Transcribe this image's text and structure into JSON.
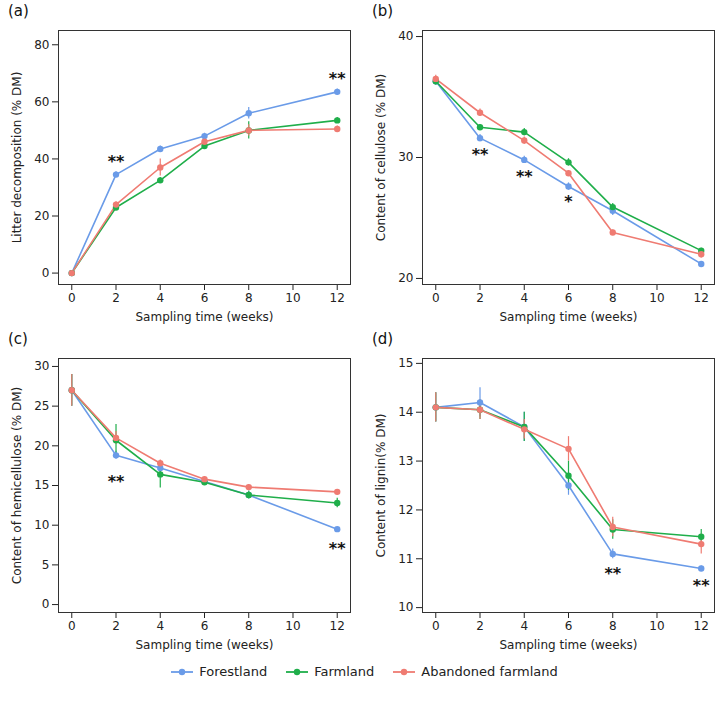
{
  "chart_data": [
    {
      "type": "line",
      "title": "(a)",
      "x_label": "Sampling time (weeks)",
      "y_label": "Litter decomposition (% DM)",
      "x": [
        0,
        2,
        4,
        6,
        8,
        12
      ],
      "xlim": [
        -0.6,
        12.6
      ],
      "xticks": [
        0,
        2,
        4,
        6,
        8,
        10,
        12
      ],
      "ylim": [
        -4,
        85
      ],
      "yticks": [
        0,
        20,
        40,
        60,
        80
      ],
      "grid": false,
      "legend": "bottom",
      "marker": "circle",
      "series": [
        {
          "name": "Forestland",
          "color": "#6a9be8",
          "values": [
            0,
            34.5,
            43.5,
            48,
            56,
            63.5
          ],
          "errors": [
            0.5,
            1,
            1,
            1,
            2,
            1
          ]
        },
        {
          "name": "Farmland",
          "color": "#1fae4a",
          "values": [
            0,
            23,
            32.5,
            44.5,
            50,
            53.5
          ],
          "errors": [
            0.5,
            1,
            1,
            1,
            3,
            1
          ]
        },
        {
          "name": "Abandoned farmland",
          "color": "#ef7b72",
          "values": [
            0,
            24,
            37,
            46,
            50,
            50.5
          ],
          "errors": [
            0.5,
            1,
            3,
            1,
            2,
            1
          ]
        }
      ],
      "annotations": [
        {
          "text": "**",
          "x": 2,
          "y": 39
        },
        {
          "text": "**",
          "x": 12,
          "y": 68
        }
      ]
    },
    {
      "type": "line",
      "title": "(b)",
      "x_label": "Sampling time (weeks)",
      "y_label": "Content of cellulose (% DM)",
      "x": [
        0,
        2,
        4,
        6,
        8,
        12
      ],
      "xlim": [
        -0.6,
        12.6
      ],
      "xticks": [
        0,
        2,
        4,
        6,
        8,
        10,
        12
      ],
      "ylim": [
        19.5,
        40.5
      ],
      "yticks": [
        20,
        30,
        40
      ],
      "grid": false,
      "legend": "bottom",
      "marker": "circle",
      "series": [
        {
          "name": "Forestland",
          "color": "#6a9be8",
          "values": [
            36.3,
            31.6,
            29.8,
            27.6,
            25.6,
            21.2
          ],
          "errors": [
            0.3,
            0.3,
            0.3,
            0.3,
            0.4,
            0.2
          ]
        },
        {
          "name": "Farmland",
          "color": "#1fae4a",
          "values": [
            36.3,
            32.5,
            32.1,
            29.6,
            25.9,
            22.3
          ],
          "errors": [
            0.3,
            0.2,
            0.3,
            0.3,
            0.3,
            0.2
          ]
        },
        {
          "name": "Abandoned farmland",
          "color": "#ef7b72",
          "values": [
            36.5,
            33.7,
            31.4,
            28.7,
            23.8,
            22.0
          ],
          "errors": [
            0.3,
            0.3,
            0.3,
            0.2,
            0.2,
            0.3
          ]
        }
      ],
      "annotations": [
        {
          "text": "**",
          "x": 2,
          "y": 30.2
        },
        {
          "text": "**",
          "x": 4,
          "y": 28.4
        },
        {
          "text": "*",
          "x": 6,
          "y": 26.3
        }
      ]
    },
    {
      "type": "line",
      "title": "(c)",
      "x_label": "Sampling time (weeks)",
      "y_label": "Content of hemicellulose (% DM)",
      "x": [
        0,
        2,
        4,
        6,
        8,
        12
      ],
      "xlim": [
        -0.6,
        12.6
      ],
      "xticks": [
        0,
        2,
        4,
        6,
        8,
        10,
        12
      ],
      "ylim": [
        -1,
        31
      ],
      "yticks": [
        0,
        5,
        10,
        15,
        20,
        25,
        30
      ],
      "grid": false,
      "legend": "bottom",
      "marker": "circle",
      "series": [
        {
          "name": "Forestland",
          "color": "#6a9be8",
          "values": [
            27,
            18.8,
            17.2,
            15.5,
            13.8,
            9.5
          ],
          "errors": [
            2,
            0.5,
            0.5,
            0.3,
            0.4,
            0.2
          ]
        },
        {
          "name": "Farmland",
          "color": "#1fae4a",
          "values": [
            27,
            20.7,
            16.4,
            15.4,
            13.8,
            12.8
          ],
          "errors": [
            2,
            2,
            1.7,
            0.4,
            0.5,
            0.6
          ]
        },
        {
          "name": "Abandoned farmland",
          "color": "#ef7b72",
          "values": [
            27,
            21,
            17.8,
            15.8,
            14.8,
            14.2
          ],
          "errors": [
            2,
            0.8,
            0.4,
            0.3,
            0.3,
            0.2
          ]
        }
      ],
      "annotations": [
        {
          "text": "**",
          "x": 2,
          "y": 15.5
        },
        {
          "text": "**",
          "x": 12,
          "y": 7
        }
      ]
    },
    {
      "type": "line",
      "title": "(d)",
      "x_label": "Sampling time (weeks)",
      "y_label": "Content of lignin(% DM)",
      "x": [
        0,
        2,
        4,
        6,
        8,
        12
      ],
      "xlim": [
        -0.6,
        12.6
      ],
      "xticks": [
        0,
        2,
        4,
        6,
        8,
        10,
        12
      ],
      "ylim": [
        9.9,
        15.1
      ],
      "yticks": [
        10,
        11,
        12,
        13,
        14,
        15
      ],
      "grid": false,
      "legend": "bottom",
      "marker": "circle",
      "series": [
        {
          "name": "Forestland",
          "color": "#6a9be8",
          "values": [
            14.1,
            14.2,
            13.7,
            12.5,
            11.1,
            10.8
          ],
          "errors": [
            0.3,
            0.3,
            0.3,
            0.2,
            0.1,
            0.05
          ]
        },
        {
          "name": "Farmland",
          "color": "#1fae4a",
          "values": [
            14.1,
            14.05,
            13.7,
            12.7,
            11.6,
            11.45
          ],
          "errors": [
            0.3,
            0.2,
            0.3,
            0.3,
            0.2,
            0.15
          ]
        },
        {
          "name": "Abandoned farmland",
          "color": "#ef7b72",
          "values": [
            14.1,
            14.05,
            13.65,
            13.25,
            11.65,
            11.3
          ],
          "errors": [
            0.3,
            0.2,
            0.2,
            0.25,
            0.2,
            0.2
          ]
        }
      ],
      "annotations": [
        {
          "text": "**",
          "x": 8,
          "y": 10.7
        },
        {
          "text": "**",
          "x": 12,
          "y": 10.45
        }
      ]
    }
  ]
}
